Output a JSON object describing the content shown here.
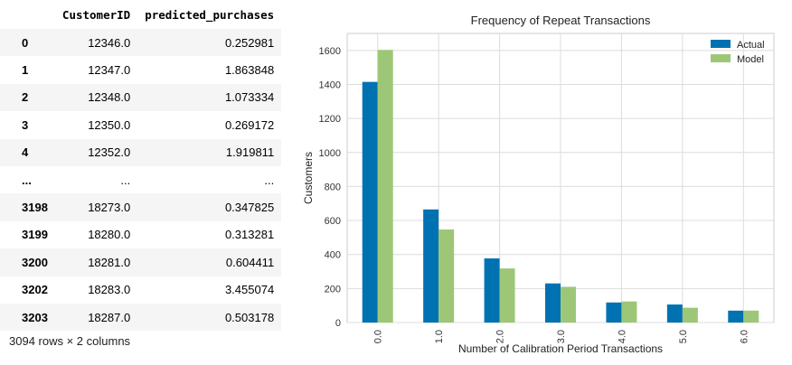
{
  "table": {
    "columns": [
      "",
      "CustomerID",
      "predicted_purchases"
    ],
    "rows": [
      {
        "index": "0",
        "customer_id": "12346.0",
        "predicted": "0.252981"
      },
      {
        "index": "1",
        "customer_id": "12347.0",
        "predicted": "1.863848"
      },
      {
        "index": "2",
        "customer_id": "12348.0",
        "predicted": "1.073334"
      },
      {
        "index": "3",
        "customer_id": "12350.0",
        "predicted": "0.269172"
      },
      {
        "index": "4",
        "customer_id": "12352.0",
        "predicted": "1.919811"
      },
      {
        "index": "...",
        "customer_id": "...",
        "predicted": "..."
      },
      {
        "index": "3198",
        "customer_id": "18273.0",
        "predicted": "0.347825"
      },
      {
        "index": "3199",
        "customer_id": "18280.0",
        "predicted": "0.313281"
      },
      {
        "index": "3200",
        "customer_id": "18281.0",
        "predicted": "0.604411"
      },
      {
        "index": "3202",
        "customer_id": "18283.0",
        "predicted": "3.455074"
      },
      {
        "index": "3203",
        "customer_id": "18287.0",
        "predicted": "0.503178"
      }
    ],
    "shape_text": "3094 rows × 2 columns"
  },
  "chart_data": {
    "type": "bar",
    "title": "Frequency of Repeat Transactions",
    "xlabel": "Number of Calibration Period Transactions",
    "ylabel": "Customers",
    "categories": [
      "0.0",
      "1.0",
      "2.0",
      "3.0",
      "4.0",
      "5.0",
      "6.0"
    ],
    "series": [
      {
        "name": "Actual",
        "color": "#0072b2",
        "values": [
          1415,
          665,
          377,
          230,
          118,
          106,
          70
        ]
      },
      {
        "name": "Model",
        "color": "#9dc777",
        "values": [
          1603,
          547,
          318,
          210,
          124,
          87,
          70
        ]
      }
    ],
    "ylim": [
      0,
      1700
    ],
    "yticks": [
      0,
      200,
      400,
      600,
      800,
      1000,
      1200,
      1400,
      1600
    ],
    "grid": true,
    "legend": "top-right"
  }
}
